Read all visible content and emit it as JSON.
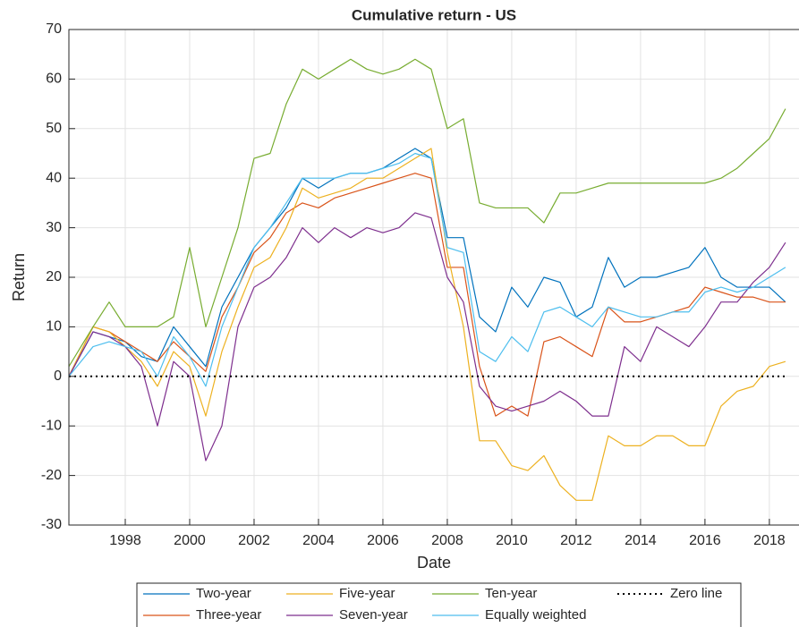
{
  "chart_data": {
    "type": "line",
    "title": "Cumulative return - US",
    "x_label": "Date",
    "y_label": "Return",
    "x": [
      1996.25,
      1997,
      1997.5,
      1998,
      1998.5,
      1999,
      1999.5,
      2000,
      2000.5,
      2001,
      2001.5,
      2002,
      2002.5,
      2003,
      2003.5,
      2004,
      2004.5,
      2005,
      2005.5,
      2006,
      2006.5,
      2007,
      2007.5,
      2008,
      2008.5,
      2009,
      2009.5,
      2010,
      2010.5,
      2011,
      2011.5,
      2012,
      2012.5,
      2013,
      2013.5,
      2014,
      2014.5,
      2015,
      2015.5,
      2016,
      2016.5,
      2017,
      2017.5,
      2018,
      2018.5
    ],
    "series": [
      {
        "name": "Two-year",
        "color": "#0072bd",
        "values": [
          0,
          9,
          8,
          7,
          4,
          3,
          10,
          6,
          2,
          14,
          20,
          26,
          30,
          34,
          40,
          38,
          40,
          41,
          41,
          42,
          44,
          46,
          44,
          28,
          28,
          12,
          9,
          18,
          14,
          20,
          19,
          12,
          14,
          24,
          18,
          20,
          20,
          21,
          22,
          26,
          20,
          18,
          18,
          18,
          15
        ]
      },
      {
        "name": "Three-year",
        "color": "#d95319",
        "values": [
          0,
          10,
          9,
          7,
          5,
          3,
          7,
          4,
          1,
          12,
          18,
          25,
          28,
          33,
          35,
          34,
          36,
          37,
          38,
          39,
          40,
          41,
          40,
          22,
          22,
          2,
          -8,
          -6,
          -8,
          7,
          8,
          6,
          4,
          14,
          11,
          11,
          12,
          13,
          14,
          18,
          17,
          16,
          16,
          15,
          15
        ]
      },
      {
        "name": "Five-year",
        "color": "#edb120",
        "values": [
          0,
          10,
          9,
          6,
          3,
          -2,
          5,
          2,
          -8,
          5,
          14,
          22,
          24,
          30,
          38,
          36,
          37,
          38,
          40,
          40,
          42,
          44,
          46,
          25,
          10,
          -13,
          -13,
          -18,
          -19,
          -16,
          -22,
          -25,
          -25,
          -12,
          -14,
          -14,
          -12,
          -12,
          -14,
          -14,
          -6,
          -3,
          -2,
          2,
          3
        ]
      },
      {
        "name": "Seven-year",
        "color": "#7e2f8e",
        "values": [
          0,
          9,
          8,
          6,
          2,
          -10,
          3,
          0,
          -17,
          -10,
          10,
          18,
          20,
          24,
          30,
          27,
          30,
          28,
          30,
          29,
          30,
          33,
          32,
          20,
          15,
          -2,
          -6,
          -7,
          -6,
          -5,
          -3,
          -5,
          -8,
          -8,
          6,
          3,
          10,
          8,
          6,
          10,
          15,
          15,
          19,
          22,
          27
        ]
      },
      {
        "name": "Ten-year",
        "color": "#77ac30",
        "values": [
          2,
          10,
          15,
          10,
          10,
          10,
          12,
          26,
          10,
          20,
          30,
          44,
          45,
          55,
          62,
          60,
          62,
          64,
          62,
          61,
          62,
          64,
          62,
          50,
          52,
          35,
          34,
          34,
          34,
          31,
          37,
          37,
          38,
          39,
          39,
          39,
          39,
          39,
          39,
          39,
          40,
          42,
          45,
          48,
          54
        ]
      },
      {
        "name": "Equally weighted",
        "color": "#4dbeee",
        "values": [
          0,
          6,
          7,
          6,
          5,
          0,
          8,
          4,
          -2,
          10,
          18,
          26,
          30,
          35,
          40,
          40,
          40,
          41,
          41,
          42,
          43,
          45,
          44,
          26,
          25,
          5,
          3,
          8,
          5,
          13,
          14,
          12,
          10,
          14,
          13,
          12,
          12,
          13,
          13,
          17,
          18,
          17,
          18,
          20,
          22
        ]
      },
      {
        "name": "Zero line",
        "color": "#000000",
        "linestyle": "dotted",
        "values": [
          0,
          0,
          0,
          0,
          0,
          0,
          0,
          0,
          0,
          0,
          0,
          0,
          0,
          0,
          0,
          0,
          0,
          0,
          0,
          0,
          0,
          0,
          0,
          0,
          0,
          0,
          0,
          0,
          0,
          0,
          0,
          0,
          0,
          0,
          0,
          0,
          0,
          0,
          0,
          0,
          0,
          0,
          0,
          0,
          0
        ]
      }
    ],
    "xlim": [
      1996.25,
      2018.92
    ],
    "xticks": [
      1998,
      2000,
      2002,
      2004,
      2006,
      2008,
      2010,
      2012,
      2014,
      2016,
      2018
    ],
    "ylim": [
      -30,
      70
    ],
    "yticks": [
      -30,
      -20,
      -10,
      0,
      10,
      20,
      30,
      40,
      50,
      60,
      70
    ],
    "grid": true
  }
}
